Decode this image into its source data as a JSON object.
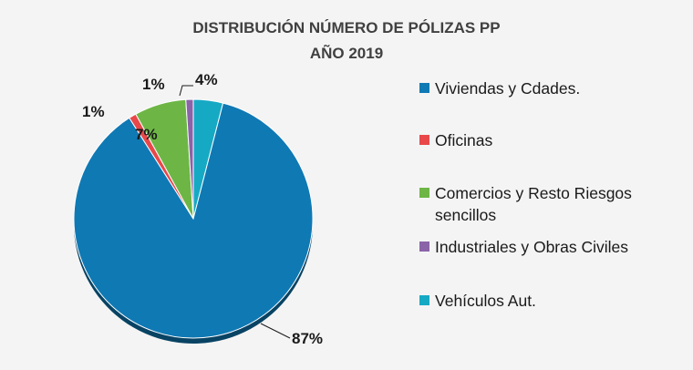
{
  "chart_data": {
    "type": "pie",
    "title": "DISTRIBUCIÓN NÚMERO DE PÓLIZAS PP",
    "subtitle": "AÑO 2019",
    "categories": [
      "Vehículos Aut.",
      "Viviendas y Cdades.",
      "Oficinas",
      "Comercios y Resto Riesgos sencillos",
      "Industriales y Obras Civiles"
    ],
    "values": [
      4,
      87,
      1,
      7,
      1
    ],
    "data_labels": [
      "4%",
      "87%",
      "1%",
      "7%",
      "1%"
    ],
    "colors": [
      "#16a9c4",
      "#0f79b4",
      "#e8484a",
      "#6db645",
      "#8a63a8"
    ],
    "legend": {
      "placement": "right",
      "entries": [
        {
          "label_lines": [
            "Viviendas y Cdades."
          ],
          "color": "#0f79b4"
        },
        {
          "label_lines": [
            "Oficinas"
          ],
          "color": "#e8484a"
        },
        {
          "label_lines": [
            "Comercios y Resto Riesgos",
            "sencillos"
          ],
          "color": "#6db645"
        },
        {
          "label_lines": [
            "Industriales y Obras Civiles"
          ],
          "color": "#8a63a8"
        },
        {
          "label_lines": [
            "Vehículos Aut."
          ],
          "color": "#16a9c4"
        }
      ]
    },
    "grid": false
  }
}
